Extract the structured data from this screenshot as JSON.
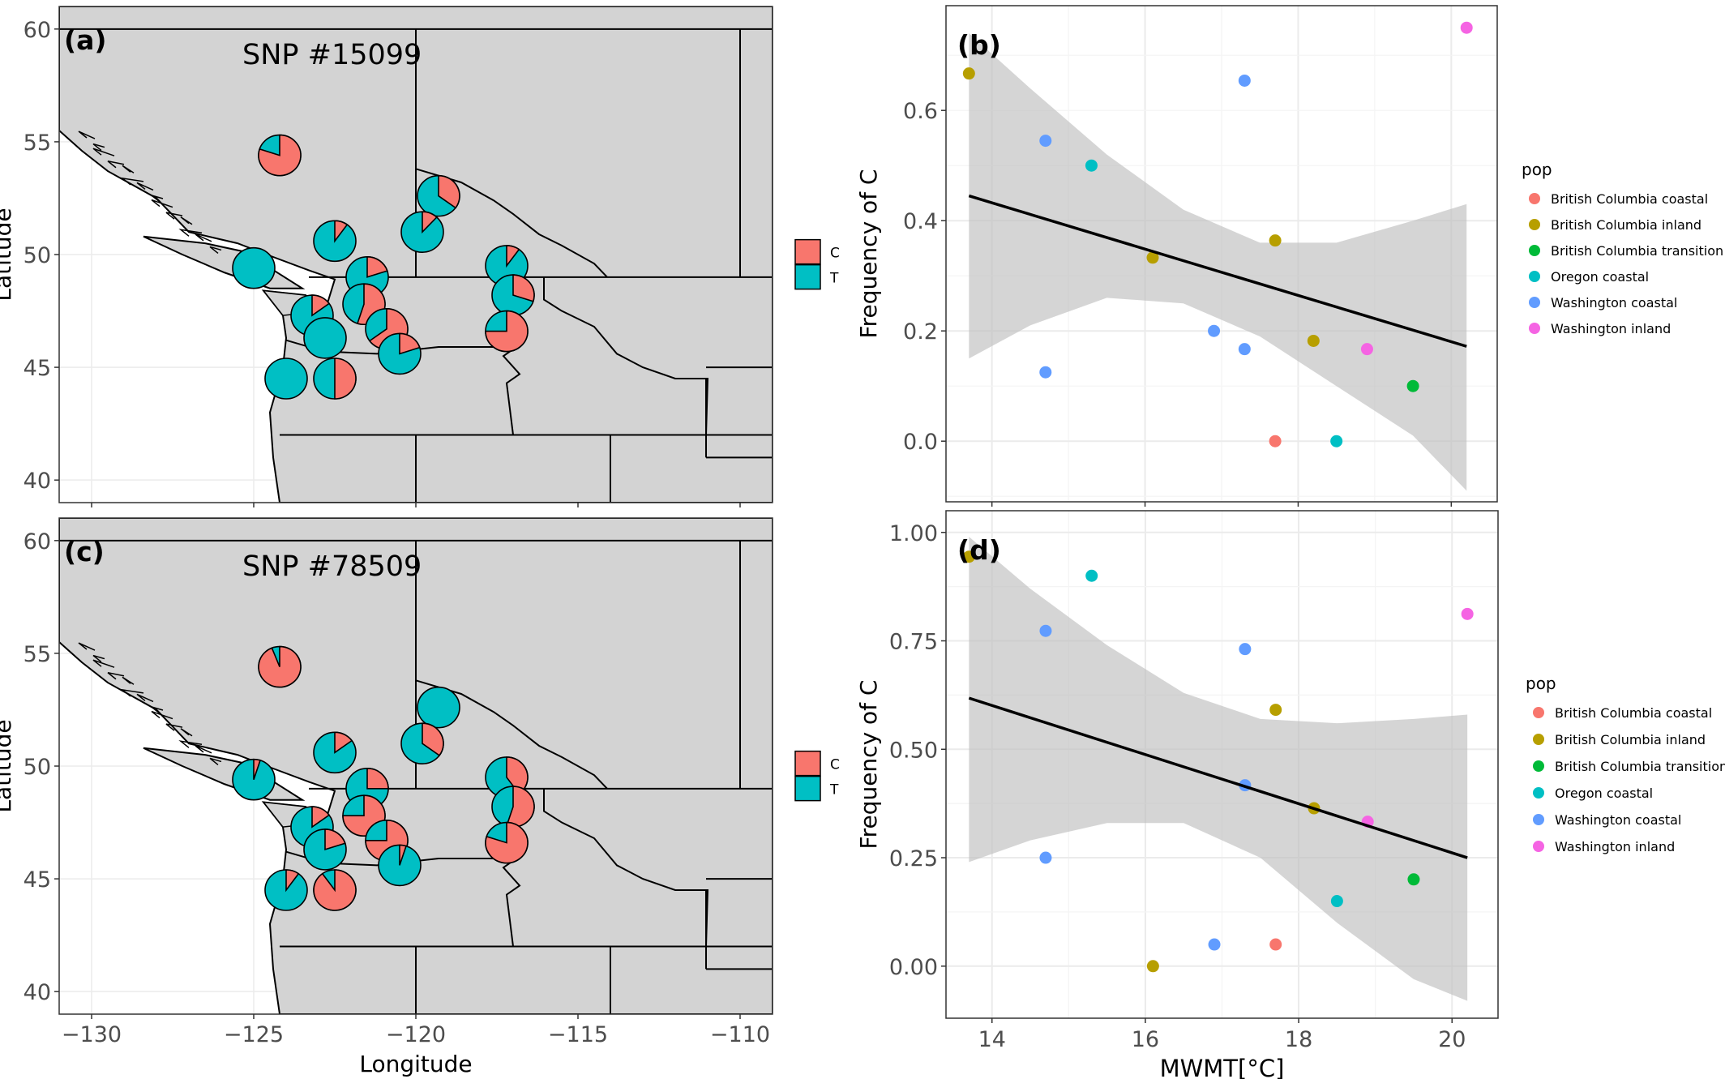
{
  "colors": {
    "C": "#F8766D",
    "T": "#00BFC4",
    "land": "#d3d3d3",
    "ribbon": "#bebebe"
  },
  "maps": {
    "xlabel": "Longitude",
    "ylabel": "Latitude",
    "xticks": [
      -130,
      -125,
      -120,
      -115,
      -110
    ],
    "yticks": [
      40,
      45,
      50,
      55,
      60
    ],
    "legend": [
      "C",
      "T"
    ]
  },
  "chart_data": [
    {
      "type": "pie-map",
      "panel": "(a)",
      "title": "SNP #15099",
      "xlabel": "",
      "ylabel": "Latitude",
      "xlim": [
        -131,
        -109
      ],
      "ylim": [
        39,
        61
      ],
      "legend": [
        "C",
        "T"
      ],
      "pies": [
        {
          "lon": -124.2,
          "lat": 54.4,
          "C": 0.8
        },
        {
          "lon": -119.3,
          "lat": 52.6,
          "C": 0.35
        },
        {
          "lon": -119.8,
          "lat": 51.0,
          "C": 0.12
        },
        {
          "lon": -122.5,
          "lat": 50.6,
          "C": 0.1
        },
        {
          "lon": -125.0,
          "lat": 49.4,
          "C": 0.0
        },
        {
          "lon": -121.5,
          "lat": 49.0,
          "C": 0.2
        },
        {
          "lon": -117.2,
          "lat": 49.5,
          "C": 0.1
        },
        {
          "lon": -117.0,
          "lat": 48.2,
          "C": 0.3
        },
        {
          "lon": -121.6,
          "lat": 47.8,
          "C": 0.55
        },
        {
          "lon": -123.2,
          "lat": 47.3,
          "C": 0.15
        },
        {
          "lon": -120.9,
          "lat": 46.7,
          "C": 0.65
        },
        {
          "lon": -122.8,
          "lat": 46.3,
          "C": 0.0
        },
        {
          "lon": -117.2,
          "lat": 46.6,
          "C": 0.75
        },
        {
          "lon": -120.5,
          "lat": 45.6,
          "C": 0.2
        },
        {
          "lon": -124.0,
          "lat": 44.5,
          "C": 0.0
        },
        {
          "lon": -122.5,
          "lat": 44.5,
          "C": 0.5
        }
      ]
    },
    {
      "type": "scatter",
      "panel": "(b)",
      "title": "",
      "xlabel": "",
      "ylabel": "Frequency of C",
      "xlim": [
        13.4,
        20.6
      ],
      "ylim": [
        -0.11,
        0.79
      ],
      "xticks": [
        14,
        16,
        18,
        20
      ],
      "yticks": [
        0.0,
        0.2,
        0.4,
        0.6
      ],
      "legend_title": "pop",
      "series": [
        {
          "name": "British Columbia coastal",
          "color": "#F8766D",
          "x": [
            17.7
          ],
          "y": [
            0.0
          ]
        },
        {
          "name": "British Columbia inland",
          "color": "#B79F00",
          "x": [
            13.7,
            16.1,
            17.7,
            18.2
          ],
          "y": [
            0.667,
            0.333,
            0.364,
            0.182
          ]
        },
        {
          "name": "British Columbia transition",
          "color": "#00BA38",
          "x": [
            19.5
          ],
          "y": [
            0.1
          ]
        },
        {
          "name": "Oregon coastal",
          "color": "#00BFC4",
          "x": [
            15.3,
            18.5
          ],
          "y": [
            0.5,
            0.0
          ]
        },
        {
          "name": "Washington coastal",
          "color": "#619CFF",
          "x": [
            14.7,
            14.7,
            16.9,
            17.3,
            17.3
          ],
          "y": [
            0.545,
            0.125,
            0.2,
            0.167,
            0.654
          ]
        },
        {
          "name": "Washington inland",
          "color": "#F564E3",
          "x": [
            18.9,
            20.2
          ],
          "y": [
            0.167,
            0.75
          ]
        }
      ],
      "fit": {
        "x": [
          13.7,
          20.2
        ],
        "y": [
          0.445,
          0.172
        ]
      },
      "band": {
        "x": [
          13.7,
          14.5,
          15.5,
          16.5,
          17.5,
          18.5,
          19.5,
          20.2
        ],
        "upper": [
          0.74,
          0.64,
          0.52,
          0.42,
          0.36,
          0.36,
          0.4,
          0.43
        ],
        "lower": [
          0.15,
          0.21,
          0.26,
          0.25,
          0.19,
          0.1,
          0.01,
          -0.09
        ]
      }
    },
    {
      "type": "pie-map",
      "panel": "(c)",
      "title": "SNP #78509",
      "xlabel": "Longitude",
      "ylabel": "Latitude",
      "xlim": [
        -131,
        -109
      ],
      "ylim": [
        39,
        61
      ],
      "xticks": [
        -130,
        -125,
        -120,
        -115,
        -110
      ],
      "legend": [
        "C",
        "T"
      ],
      "pies": [
        {
          "lon": -124.2,
          "lat": 54.4,
          "C": 0.94
        },
        {
          "lon": -119.3,
          "lat": 52.6,
          "C": 0.0
        },
        {
          "lon": -119.8,
          "lat": 51.0,
          "C": 0.35
        },
        {
          "lon": -122.5,
          "lat": 50.6,
          "C": 0.15
        },
        {
          "lon": -125.0,
          "lat": 49.4,
          "C": 0.05
        },
        {
          "lon": -121.5,
          "lat": 49.0,
          "C": 0.25
        },
        {
          "lon": -117.2,
          "lat": 49.5,
          "C": 0.4
        },
        {
          "lon": -117.0,
          "lat": 48.2,
          "C": 0.55
        },
        {
          "lon": -121.6,
          "lat": 47.8,
          "C": 0.75
        },
        {
          "lon": -123.2,
          "lat": 47.3,
          "C": 0.15
        },
        {
          "lon": -120.9,
          "lat": 46.7,
          "C": 0.75
        },
        {
          "lon": -122.8,
          "lat": 46.3,
          "C": 0.2
        },
        {
          "lon": -117.2,
          "lat": 46.6,
          "C": 0.8
        },
        {
          "lon": -120.5,
          "lat": 45.6,
          "C": 0.05
        },
        {
          "lon": -124.0,
          "lat": 44.5,
          "C": 0.1
        },
        {
          "lon": -122.5,
          "lat": 44.5,
          "C": 0.9
        }
      ]
    },
    {
      "type": "scatter",
      "panel": "(d)",
      "title": "",
      "xlabel": "MWMT[°C]",
      "ylabel": "Frequency of C",
      "xlim": [
        13.4,
        20.6
      ],
      "ylim": [
        -0.12,
        1.05
      ],
      "xticks": [
        14,
        16,
        18,
        20
      ],
      "yticks": [
        0.0,
        0.25,
        0.5,
        0.75,
        1.0
      ],
      "legend_title": "pop",
      "series": [
        {
          "name": "British Columbia coastal",
          "color": "#F8766D",
          "x": [
            17.7
          ],
          "y": [
            0.05
          ]
        },
        {
          "name": "British Columbia inland",
          "color": "#B79F00",
          "x": [
            13.7,
            16.1,
            17.7,
            18.2
          ],
          "y": [
            0.944,
            0.0,
            0.591,
            0.364
          ]
        },
        {
          "name": "British Columbia transition",
          "color": "#00BA38",
          "x": [
            19.5
          ],
          "y": [
            0.2
          ]
        },
        {
          "name": "Oregon coastal",
          "color": "#00BFC4",
          "x": [
            15.3,
            18.5
          ],
          "y": [
            0.9,
            0.15
          ]
        },
        {
          "name": "Washington coastal",
          "color": "#619CFF",
          "x": [
            14.7,
            14.7,
            16.9,
            17.3,
            17.3
          ],
          "y": [
            0.773,
            0.25,
            0.05,
            0.731,
            0.417
          ]
        },
        {
          "name": "Washington inland",
          "color": "#F564E3",
          "x": [
            18.9,
            20.2
          ],
          "y": [
            0.333,
            0.812
          ]
        }
      ],
      "fit": {
        "x": [
          13.7,
          20.2
        ],
        "y": [
          0.618,
          0.25
        ]
      },
      "band": {
        "x": [
          13.7,
          14.5,
          15.5,
          16.5,
          17.5,
          18.5,
          19.5,
          20.2
        ],
        "upper": [
          0.99,
          0.87,
          0.74,
          0.63,
          0.57,
          0.56,
          0.57,
          0.58
        ],
        "lower": [
          0.24,
          0.29,
          0.33,
          0.33,
          0.25,
          0.1,
          -0.03,
          -0.08
        ]
      }
    }
  ]
}
